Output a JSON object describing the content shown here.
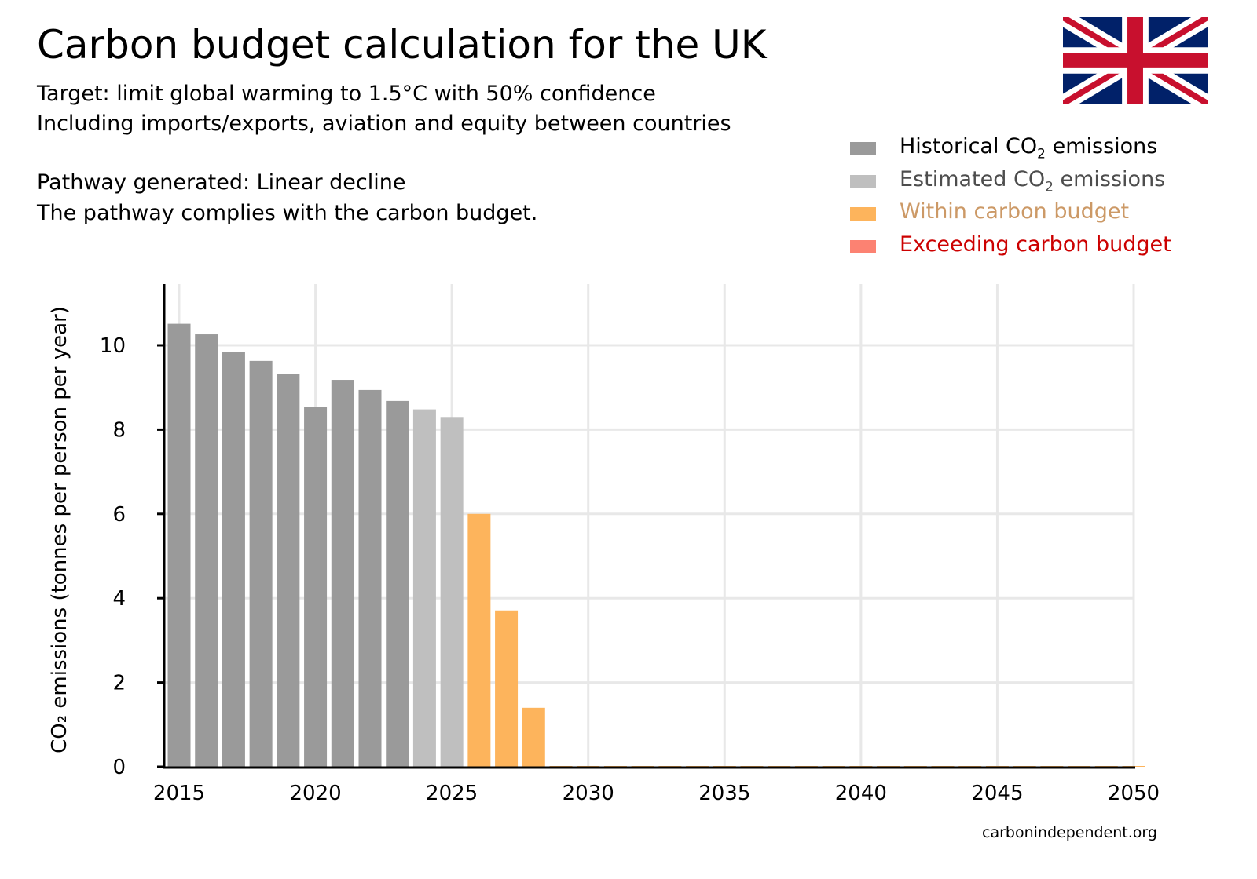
{
  "title": "Carbon budget calculation for the UK",
  "subtitle_lines": [
    "Target: limit global warming to 1.5°C with 50% confidence",
    "Including imports/exports, aviation and equity between countries"
  ],
  "pathway_lines": [
    "Pathway generated: Linear decline",
    "The pathway complies with the carbon budget."
  ],
  "footer": "carbonindependent.org",
  "flag": "uk-flag",
  "legend": [
    {
      "pre": "Historical CO",
      "sub": "2",
      "post": " emissions",
      "color": "#9a9a9a",
      "text_color": "#000000"
    },
    {
      "pre": "Estimated CO",
      "sub": "2",
      "post": " emissions",
      "color": "#bfbfbf",
      "text_color": "#4d4d4d"
    },
    {
      "pre": "Within carbon budget",
      "sub": "",
      "post": "",
      "color": "#fdb45c",
      "text_color": "#cc9966"
    },
    {
      "pre": "Exceeding carbon budget",
      "sub": "",
      "post": "",
      "color": "#fc8272",
      "text_color": "#cc0000"
    }
  ],
  "chart_data": {
    "type": "bar",
    "ylabel": "CO₂ emissions (tonnes per person per year)",
    "ylim": [
      0,
      11.5
    ],
    "xlim": [
      2014.5,
      2050.5
    ],
    "xticks": [
      2015,
      2020,
      2025,
      2030,
      2035,
      2040,
      2045,
      2050
    ],
    "yticks": [
      0,
      2,
      4,
      6,
      8,
      10
    ],
    "grid": true,
    "legend_placement": "top-right",
    "series": [
      {
        "name": "Historical CO2 emissions",
        "color": "#9a9a9a",
        "x": [
          2015,
          2016,
          2017,
          2018,
          2019,
          2020,
          2021,
          2022,
          2023
        ],
        "values": [
          10.51,
          10.26,
          9.85,
          9.63,
          9.32,
          8.54,
          9.18,
          8.94,
          8.68
        ]
      },
      {
        "name": "Estimated CO2 emissions",
        "color": "#bfbfbf",
        "x": [
          2024,
          2025
        ],
        "values": [
          8.48,
          8.3
        ]
      },
      {
        "name": "Within carbon budget",
        "color": "#fdb45c",
        "x": [
          2026,
          2027,
          2028,
          2029,
          2030,
          2031,
          2032,
          2033,
          2034,
          2035,
          2036,
          2037,
          2038,
          2039,
          2040,
          2041,
          2042,
          2043,
          2044,
          2045,
          2046,
          2047,
          2048,
          2049,
          2050
        ],
        "values": [
          6.0,
          3.71,
          1.4,
          0,
          0,
          0,
          0,
          0,
          0,
          0,
          0,
          0,
          0,
          0,
          0,
          0,
          0,
          0,
          0,
          0,
          0,
          0,
          0,
          0,
          0
        ]
      },
      {
        "name": "Exceeding carbon budget",
        "color": "#fc8272",
        "x": [],
        "values": []
      }
    ]
  }
}
